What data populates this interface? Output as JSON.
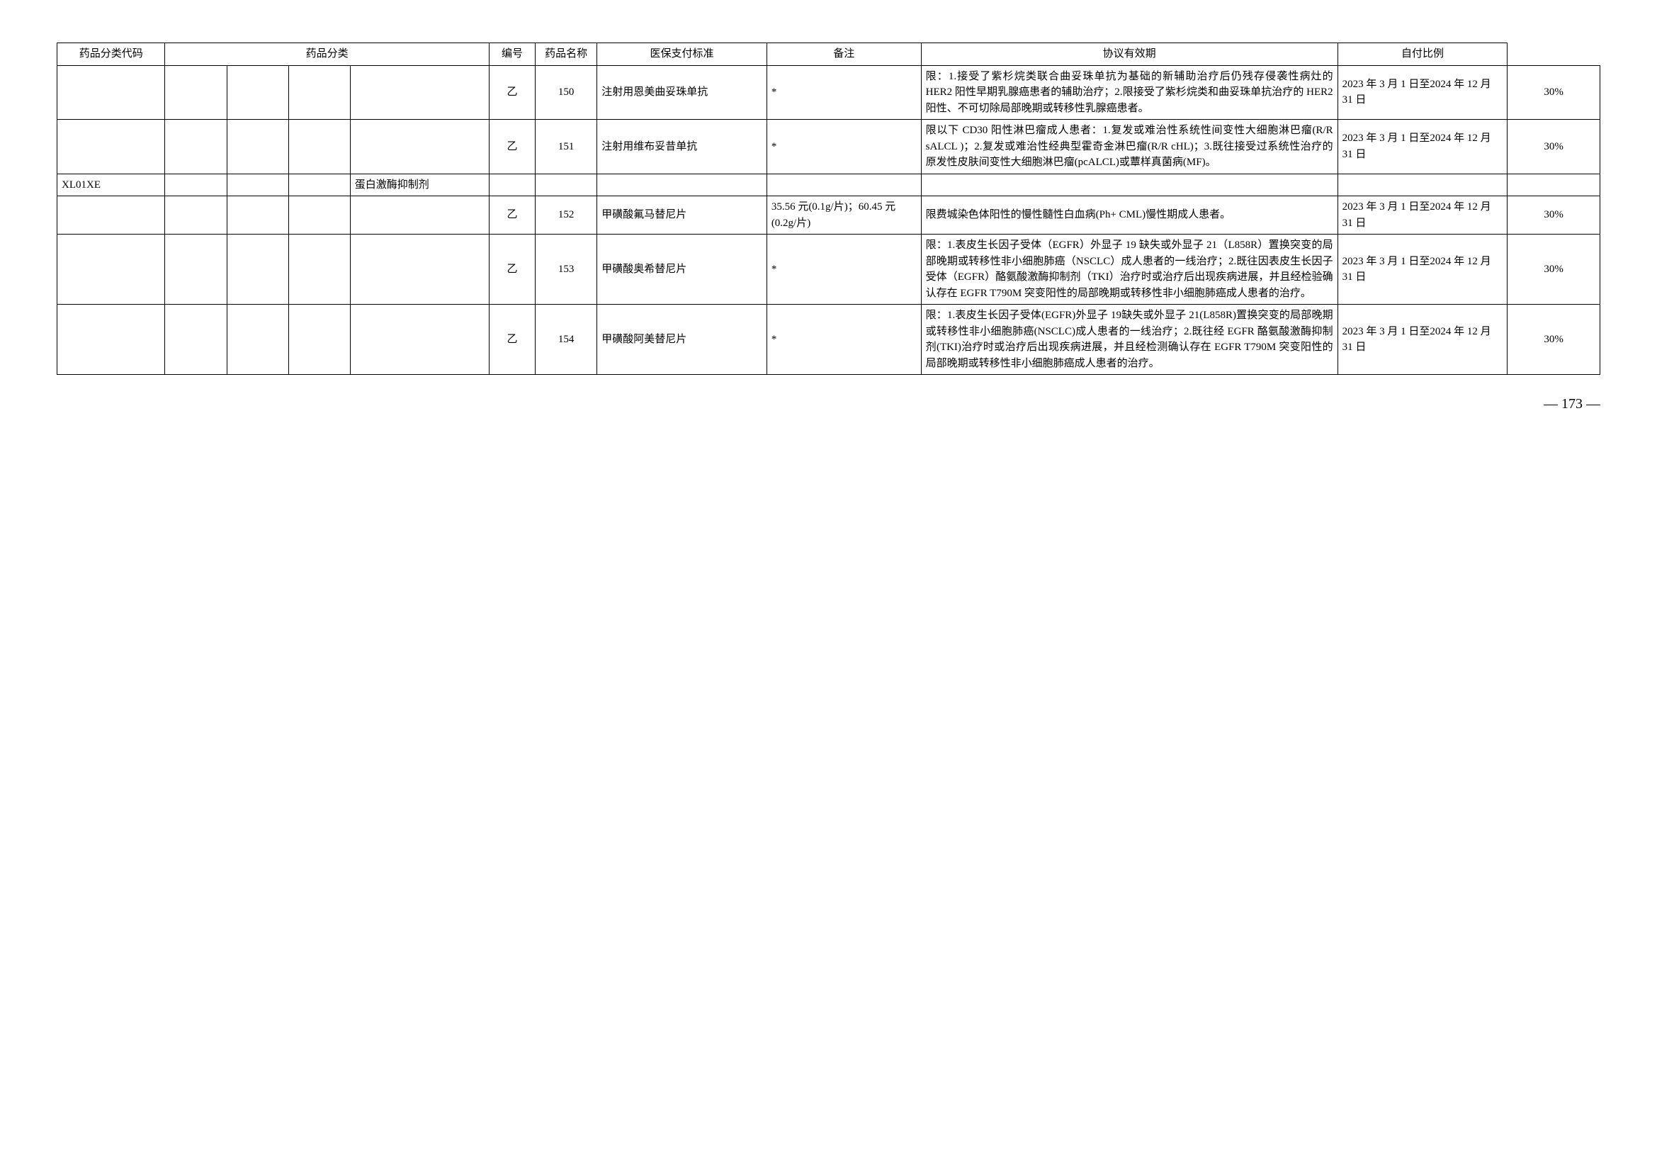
{
  "headers": {
    "code": "药品分类代码",
    "category": "药品分类",
    "number": "编号",
    "name": "药品名称",
    "standard": "医保支付标准",
    "remark": "备注",
    "period": "协议有效期",
    "ratio": "自付比例"
  },
  "rows": [
    {
      "code": "",
      "cat1": "",
      "cat2": "",
      "cat3": "",
      "cat4": "",
      "grade": "乙",
      "num": "150",
      "name": "注射用恩美曲妥珠单抗",
      "standard": "*",
      "remark": "限：1.接受了紫杉烷类联合曲妥珠单抗为基础的新辅助治疗后仍残存侵袭性病灶的 HER2 阳性早期乳腺癌患者的辅助治疗；2.限接受了紫杉烷类和曲妥珠单抗治疗的 HER2 阳性、不可切除局部晚期或转移性乳腺癌患者。",
      "period": "2023 年 3 月 1 日至2024 年 12 月 31 日",
      "ratio": "30%"
    },
    {
      "code": "",
      "cat1": "",
      "cat2": "",
      "cat3": "",
      "cat4": "",
      "grade": "乙",
      "num": "151",
      "name": "注射用维布妥昔单抗",
      "standard": "*",
      "remark": "限以下 CD30 阳性淋巴瘤成人患者：1.复发或难治性系统性间变性大细胞淋巴瘤(R/R sALCL )；2.复发或难治性经典型霍奇金淋巴瘤(R/R cHL)；3.既往接受过系统性治疗的原发性皮肤间变性大细胞淋巴瘤(pcALCL)或蕈样真菌病(MF)。",
      "period": "2023 年 3 月 1 日至2024 年 12 月 31 日",
      "ratio": "30%"
    },
    {
      "code": "XL01XE",
      "cat1": "",
      "cat2": "",
      "cat3": "",
      "cat4": "蛋白激酶抑制剂",
      "grade": "",
      "num": "",
      "name": "",
      "standard": "",
      "remark": "",
      "period": "",
      "ratio": ""
    },
    {
      "code": "",
      "cat1": "",
      "cat2": "",
      "cat3": "",
      "cat4": "",
      "grade": "乙",
      "num": "152",
      "name": "甲磺酸氟马替尼片",
      "standard": "35.56 元(0.1g/片)；60.45 元(0.2g/片)",
      "remark": "限费城染色体阳性的慢性髓性白血病(Ph+ CML)慢性期成人患者。",
      "period": "2023 年 3 月 1 日至2024 年 12 月 31 日",
      "ratio": "30%"
    },
    {
      "code": "",
      "cat1": "",
      "cat2": "",
      "cat3": "",
      "cat4": "",
      "grade": "乙",
      "num": "153",
      "name": "甲磺酸奥希替尼片",
      "standard": "*",
      "remark": "限：1.表皮生长因子受体（EGFR）外显子 19 缺失或外显子 21（L858R）置换突变的局部晚期或转移性非小细胞肺癌（NSCLC）成人患者的一线治疗；2.既往因表皮生长因子受体（EGFR）酪氨酸激酶抑制剂（TKI）治疗时或治疗后出现疾病进展，并且经检验确认存在 EGFR T790M  突变阳性的局部晚期或转移性非小细胞肺癌成人患者的治疗。",
      "period": "2023 年 3 月 1 日至2024 年 12 月 31 日",
      "ratio": "30%"
    },
    {
      "code": "",
      "cat1": "",
      "cat2": "",
      "cat3": "",
      "cat4": "",
      "grade": "乙",
      "num": "154",
      "name": "甲磺酸阿美替尼片",
      "standard": "*",
      "remark": "限：1.表皮生长因子受体(EGFR)外显子 19缺失或外显子 21(L858R)置换突变的局部晚期或转移性非小细胞肺癌(NSCLC)成人患者的一线治疗；2.既往经 EGFR 酪氨酸激酶抑制剂(TKI)治疗时或治疗后出现疾病进展，并且经检测确认存在 EGFR T790M 突变阳性的局部晚期或转移性非小细胞肺癌成人患者的治疗。",
      "period": "2023 年 3 月 1 日至2024 年 12 月 31 日",
      "ratio": "30%"
    }
  ],
  "pageNumber": "— 173 —",
  "styling": {
    "background_color": "#ffffff",
    "border_color": "#000000",
    "text_color": "#000000",
    "font_family": "SimSun",
    "base_font_size": 15,
    "page_num_font_size": 20
  }
}
